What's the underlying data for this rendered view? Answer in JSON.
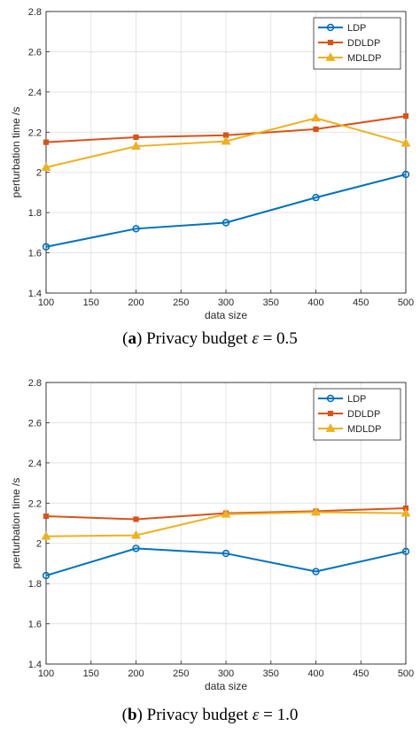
{
  "chart_data": [
    {
      "type": "line",
      "x": [
        100,
        200,
        300,
        400,
        500
      ],
      "xticks": [
        "100",
        "150",
        "200",
        "250",
        "300",
        "350",
        "400",
        "450",
        "500"
      ],
      "yticks": [
        "1.4",
        "1.6",
        "1.8",
        "2",
        "2.2",
        "2.4",
        "2.6",
        "2.8"
      ],
      "xlabel": "data size",
      "ylabel": "perturbation time /s",
      "xlim": [
        100,
        500
      ],
      "ylim": [
        1.4,
        2.8
      ],
      "grid": true,
      "legend_position": "top-right",
      "series": [
        {
          "name": "LDP",
          "color": "#0072BD",
          "marker": "circle",
          "values": [
            1.63,
            1.72,
            1.75,
            1.875,
            1.99
          ]
        },
        {
          "name": "DDLDP",
          "color": "#D95319",
          "marker": "square",
          "values": [
            2.15,
            2.175,
            2.185,
            2.215,
            2.28
          ]
        },
        {
          "name": "MDLDP",
          "color": "#EDB120",
          "marker": "triangle",
          "values": [
            2.025,
            2.13,
            2.155,
            2.27,
            2.145
          ]
        }
      ],
      "caption": {
        "label": "a",
        "text": "Privacy budget",
        "symbol": "ε",
        "value": "= 0.5"
      }
    },
    {
      "type": "line",
      "x": [
        100,
        200,
        300,
        400,
        500
      ],
      "xticks": [
        "100",
        "150",
        "200",
        "250",
        "300",
        "350",
        "400",
        "450",
        "500"
      ],
      "yticks": [
        "1.4",
        "1.6",
        "1.8",
        "2",
        "2.2",
        "2.4",
        "2.6",
        "2.8"
      ],
      "xlabel": "data size",
      "ylabel": "perturbation time /s",
      "xlim": [
        100,
        500
      ],
      "ylim": [
        1.4,
        2.8
      ],
      "grid": true,
      "legend_position": "top-right",
      "series": [
        {
          "name": "LDP",
          "color": "#0072BD",
          "marker": "circle",
          "values": [
            1.84,
            1.975,
            1.95,
            1.86,
            1.96
          ]
        },
        {
          "name": "DDLDP",
          "color": "#D95319",
          "marker": "square",
          "values": [
            2.135,
            2.12,
            2.15,
            2.16,
            2.175
          ]
        },
        {
          "name": "MDLDP",
          "color": "#EDB120",
          "marker": "triangle",
          "values": [
            2.035,
            2.04,
            2.145,
            2.155,
            2.15
          ]
        }
      ],
      "caption": {
        "label": "b",
        "text": "Privacy budget",
        "symbol": "ε",
        "value": "= 1.0"
      }
    }
  ]
}
